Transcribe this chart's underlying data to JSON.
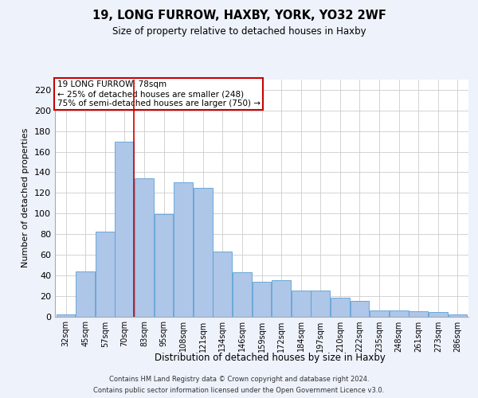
{
  "title1": "19, LONG FURROW, HAXBY, YORK, YO32 2WF",
  "title2": "Size of property relative to detached houses in Haxby",
  "xlabel": "Distribution of detached houses by size in Haxby",
  "ylabel": "Number of detached properties",
  "footer1": "Contains HM Land Registry data © Crown copyright and database right 2024.",
  "footer2": "Contains public sector information licensed under the Open Government Licence v3.0.",
  "categories": [
    "32sqm",
    "45sqm",
    "57sqm",
    "70sqm",
    "83sqm",
    "95sqm",
    "108sqm",
    "121sqm",
    "134sqm",
    "146sqm",
    "159sqm",
    "172sqm",
    "184sqm",
    "197sqm",
    "210sqm",
    "222sqm",
    "235sqm",
    "248sqm",
    "261sqm",
    "273sqm",
    "286sqm"
  ],
  "values": [
    2,
    44,
    82,
    170,
    134,
    99,
    130,
    125,
    63,
    43,
    34,
    35,
    25,
    25,
    18,
    15,
    6,
    6,
    5,
    4,
    2
  ],
  "bar_color": "#aec6e8",
  "bar_edge_color": "#5a9fd4",
  "grid_color": "#cccccc",
  "annotation_box_color": "#cc0000",
  "vline_color": "#cc0000",
  "property_index": 3,
  "annotation_title": "19 LONG FURROW: 78sqm",
  "annotation_line1": "← 25% of detached houses are smaller (248)",
  "annotation_line2": "75% of semi-detached houses are larger (750) →",
  "ylim": [
    0,
    230
  ],
  "yticks": [
    0,
    20,
    40,
    60,
    80,
    100,
    120,
    140,
    160,
    180,
    200,
    220
  ],
  "background_color": "#eef2fb",
  "plot_bg_color": "#ffffff"
}
